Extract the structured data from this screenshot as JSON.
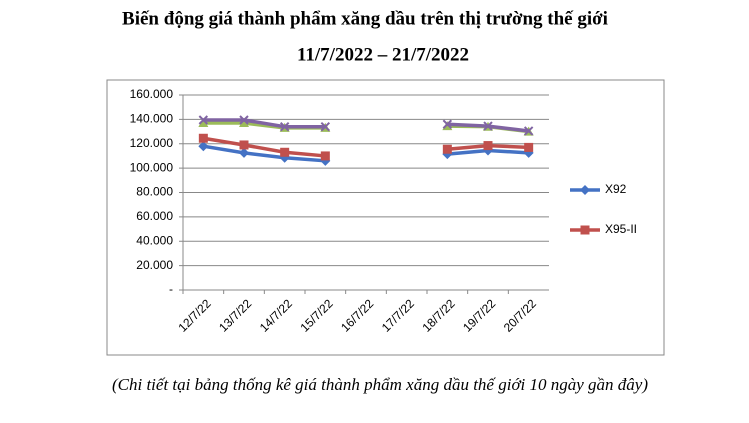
{
  "chart_data": {
    "type": "line",
    "title": "Biến động giá thành phẩm xăng dầu trên thị trường thế giới",
    "subtitle": "11/7/2022 – 21/7/2022",
    "caption": "(Chi tiết tại bảng thống kê giá thành phẩm xăng dầu thế giới 10 ngày gần đây)",
    "categories": [
      "12/7/22",
      "13/7/22",
      "14/7/22",
      "15/7/22",
      "16/7/22",
      "17/7/22",
      "18/7/22",
      "19/7/22",
      "20/7/22"
    ],
    "series": [
      {
        "name": "X92",
        "color": "#4472c4",
        "marker": "diamond",
        "values": [
          118000,
          112500,
          108500,
          106000,
          null,
          null,
          111500,
          114500,
          112500
        ]
      },
      {
        "name": "X95-II",
        "color": "#c0504d",
        "marker": "square",
        "values": [
          124500,
          119000,
          113000,
          110000,
          null,
          null,
          115500,
          118500,
          117000
        ]
      },
      {
        "color": "#9bbb59",
        "marker": "triangle",
        "values": [
          137000,
          137000,
          133000,
          133000,
          null,
          null,
          134500,
          134000,
          130000
        ]
      },
      {
        "color": "#8064a2",
        "marker": "x",
        "values": [
          139500,
          139500,
          134000,
          134000,
          null,
          null,
          136000,
          134500,
          130500
        ]
      }
    ],
    "ylim": [
      0,
      160000
    ],
    "yticks": [
      {
        "value": 0,
        "label": "-"
      },
      {
        "value": 20000,
        "label": "20.000"
      },
      {
        "value": 40000,
        "label": "40.000"
      },
      {
        "value": 60000,
        "label": "60.000"
      },
      {
        "value": 80000,
        "label": "80.000"
      },
      {
        "value": 100000,
        "label": "100.000"
      },
      {
        "value": 120000,
        "label": "120.000"
      },
      {
        "value": 140000,
        "label": "140.000"
      },
      {
        "value": 160000,
        "label": "160.000"
      }
    ],
    "grid": true,
    "legend": "right"
  }
}
